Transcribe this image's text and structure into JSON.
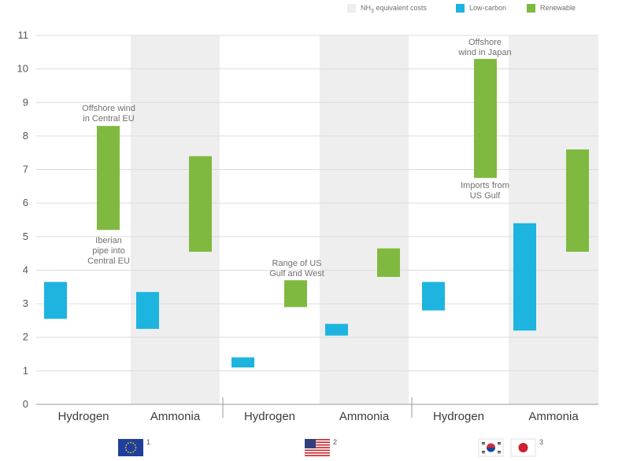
{
  "chart_data": {
    "type": "floating-bar",
    "title": "",
    "xlabel": "",
    "ylabel": "",
    "ylim": [
      0,
      11
    ],
    "yticks": [
      0,
      1,
      2,
      3,
      4,
      5,
      6,
      7,
      8,
      9,
      10,
      11
    ],
    "legend": [
      {
        "key": "nh3",
        "label_main": "NH",
        "label_sub": "3",
        "label_rest": " equivalent costs",
        "color": "#eeeeee"
      },
      {
        "key": "low",
        "label": "Low-carbon",
        "color": "#1eb4e0"
      },
      {
        "key": "ren",
        "label": "Renewable",
        "color": "#80b940"
      }
    ],
    "categories": [
      "Hydrogen",
      "Ammonia",
      "Hydrogen",
      "Ammonia",
      "Hydrogen",
      "Ammonia"
    ],
    "groups": [
      {
        "footnote": "1",
        "flags": [
          "eu-flag-icon"
        ]
      },
      {
        "footnote": "2",
        "flags": [
          "us-flag-icon"
        ]
      },
      {
        "footnote": "3",
        "flags": [
          "korea-flag-icon",
          "japan-flag-icon"
        ]
      }
    ],
    "shaded_categories": [
      1,
      3,
      5
    ],
    "series": [
      {
        "name": "Low-carbon",
        "color": "#1eb4e0",
        "ranges": [
          [
            2.55,
            3.65
          ],
          [
            2.25,
            3.35
          ],
          [
            1.1,
            1.4
          ],
          [
            2.05,
            2.4
          ],
          [
            2.8,
            3.65
          ],
          [
            2.2,
            5.4
          ]
        ]
      },
      {
        "name": "Renewable",
        "color": "#80b940",
        "ranges": [
          [
            5.2,
            8.3
          ],
          [
            4.55,
            7.4
          ],
          [
            2.9,
            3.7
          ],
          [
            3.8,
            4.65
          ],
          [
            6.75,
            10.3
          ],
          [
            4.55,
            7.6
          ]
        ]
      }
    ],
    "annotations": [
      {
        "lines": [
          "Offshore wind",
          "in Central EU"
        ]
      },
      {
        "lines": [
          "Iberian",
          "pipe into",
          "Central EU"
        ]
      },
      {
        "lines": [
          "Range of US",
          "Gulf and West"
        ]
      },
      {
        "lines": [
          "Offshore",
          "wind in Japan"
        ]
      },
      {
        "lines": [
          "Imports from",
          "US Gulf"
        ]
      }
    ]
  }
}
